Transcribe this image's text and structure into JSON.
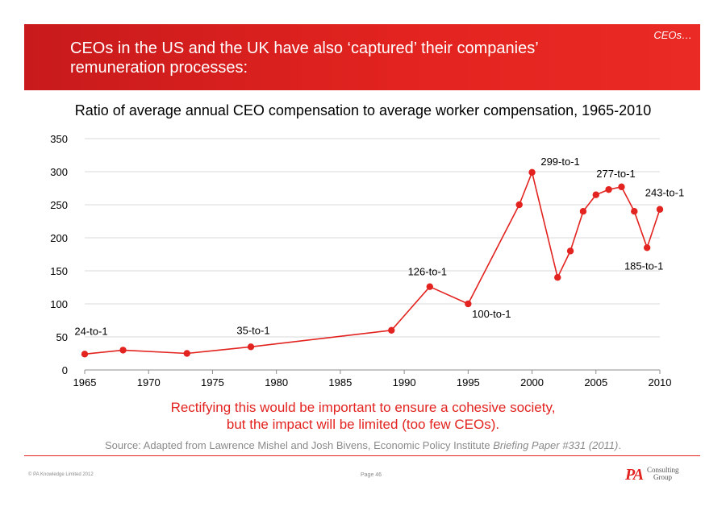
{
  "header": {
    "title": "CEOs in the US and the UK have also ‘captured’ their companies’ remuneration processes:",
    "section": "CEOs…"
  },
  "chart_data": {
    "type": "line",
    "title": "Ratio of average annual CEO compensation to average worker compensation, 1965-2010",
    "xlabel": "",
    "ylabel": "",
    "xlim": [
      1965,
      2010
    ],
    "ylim": [
      0,
      350
    ],
    "x_ticks": [
      1965,
      1970,
      1975,
      1980,
      1985,
      1990,
      1995,
      2000,
      2005,
      2010
    ],
    "y_ticks": [
      0,
      50,
      100,
      150,
      200,
      250,
      300,
      350
    ],
    "grid": true,
    "legend": "none",
    "series": [
      {
        "color": "#e2231f",
        "points": [
          {
            "x": 1965,
            "y": 24
          },
          {
            "x": 1968,
            "y": 30
          },
          {
            "x": 1973,
            "y": 25
          },
          {
            "x": 1978,
            "y": 35
          },
          {
            "x": 1989,
            "y": 60
          },
          {
            "x": 1992,
            "y": 126
          },
          {
            "x": 1995,
            "y": 100
          },
          {
            "x": 1999,
            "y": 250
          },
          {
            "x": 2000,
            "y": 299
          },
          {
            "x": 2002,
            "y": 140
          },
          {
            "x": 2003,
            "y": 180
          },
          {
            "x": 2004,
            "y": 240
          },
          {
            "x": 2005,
            "y": 265
          },
          {
            "x": 2006,
            "y": 273
          },
          {
            "x": 2007,
            "y": 277
          },
          {
            "x": 2008,
            "y": 240
          },
          {
            "x": 2009,
            "y": 185
          },
          {
            "x": 2010,
            "y": 243
          }
        ]
      }
    ],
    "annotations": [
      {
        "text": "24-to-1",
        "x": 1965,
        "y": 24
      },
      {
        "text": "35-to-1",
        "x": 1978,
        "y": 35
      },
      {
        "text": "126-to-1",
        "x": 1992,
        "y": 126
      },
      {
        "text": "100-to-1",
        "x": 1995,
        "y": 100
      },
      {
        "text": "299-to-1",
        "x": 2000,
        "y": 299
      },
      {
        "text": "277-to-1",
        "x": 2007,
        "y": 277
      },
      {
        "text": "243-to-1",
        "x": 2010,
        "y": 243
      },
      {
        "text": "185-to-1",
        "x": 2009,
        "y": 185
      }
    ]
  },
  "conclusion": {
    "line1": "Rectifying this would be important to ensure a cohesive society,",
    "line2": "but the impact will be limited (too few CEOs)."
  },
  "source": {
    "prefix": "Source: Adapted from Lawrence Mishel and Josh Bivens, Economic Policy Institute ",
    "publication": "Briefing Paper #331 (2011)",
    "suffix": "."
  },
  "footer": {
    "copyright": "© PA Knowledge Limited 2012",
    "page": "Page 46",
    "logo": {
      "mark": "PA",
      "line1": "Consulting",
      "line2": "Group"
    }
  },
  "colors": {
    "accent": "#e2231f",
    "grid": "#d9d9d9",
    "muted": "#8a8a8a"
  }
}
